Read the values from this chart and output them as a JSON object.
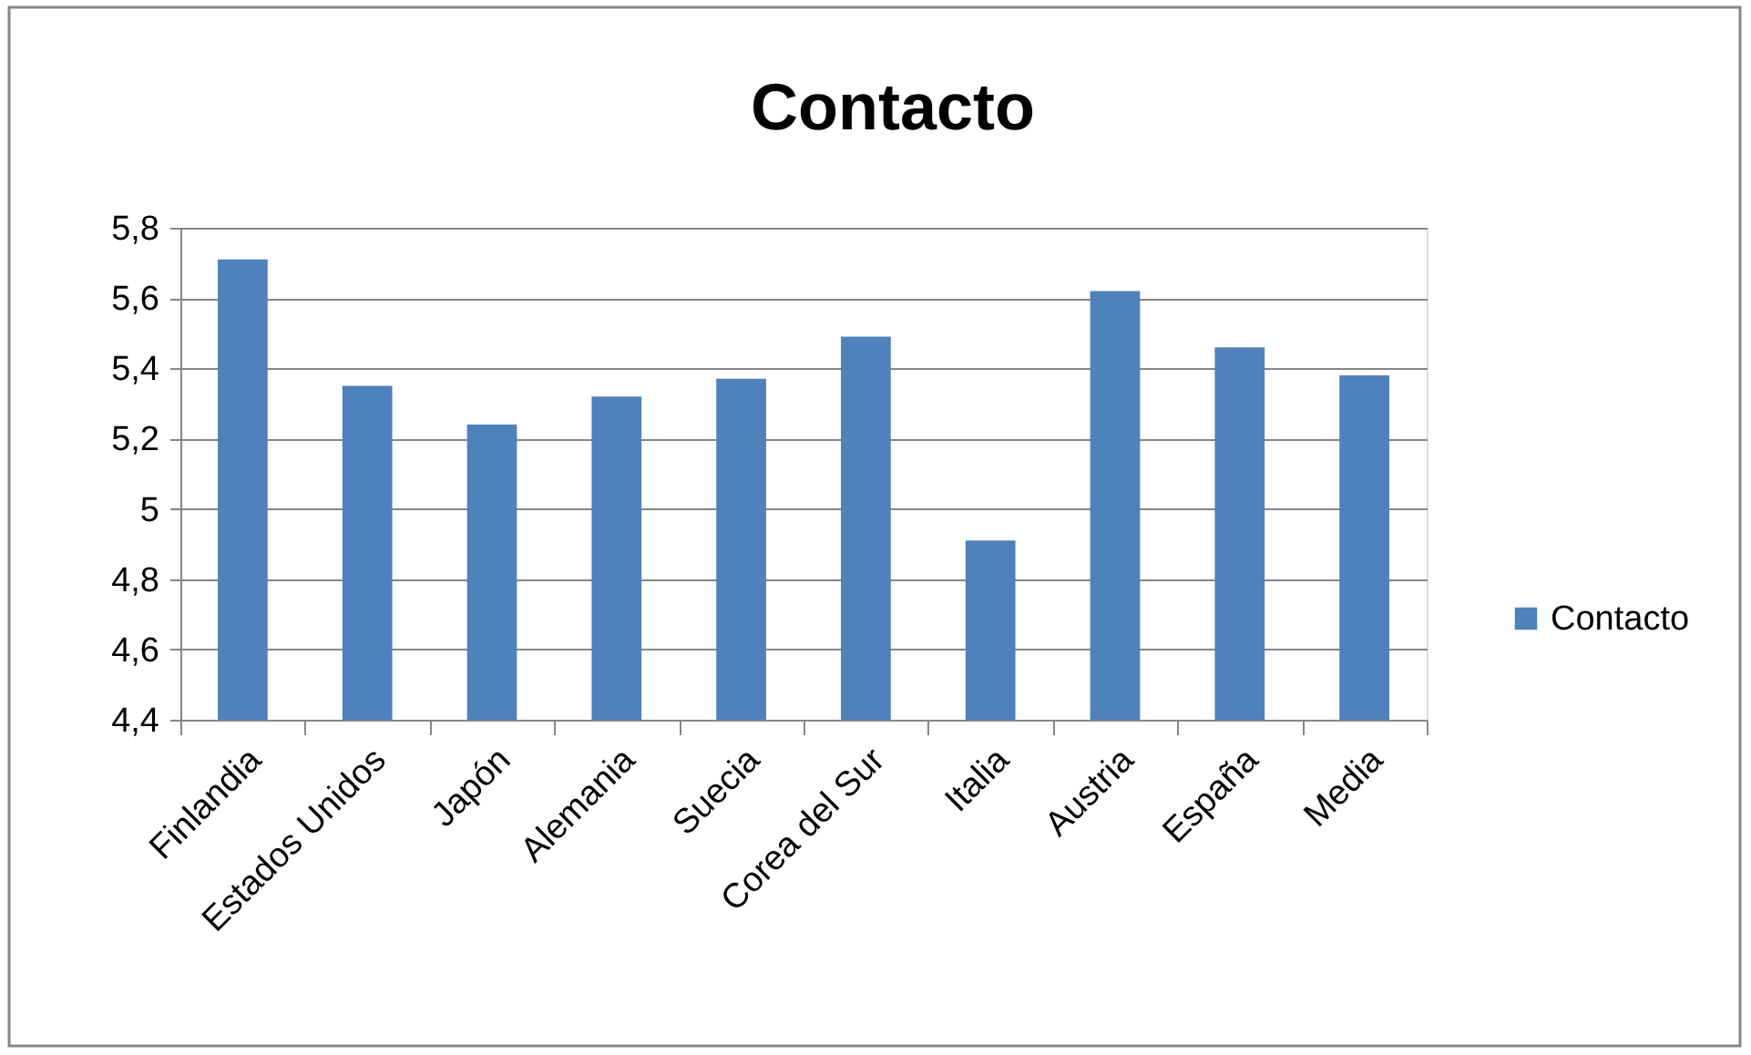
{
  "chart_data": {
    "type": "bar",
    "title": "Contacto",
    "categories": [
      "Finlandia",
      "Estados Unidos",
      "Japón",
      "Alemania",
      "Suecia",
      "Corea del Sur",
      "Italia",
      "Austria",
      "España",
      "Media"
    ],
    "series": [
      {
        "name": "Contacto",
        "color": "#4f81bd",
        "values": [
          5.71,
          5.35,
          5.24,
          5.32,
          5.37,
          5.49,
          4.91,
          5.62,
          5.46,
          5.38
        ]
      }
    ],
    "ylim": [
      4.4,
      5.8
    ],
    "yticks": [
      {
        "value": 4.4,
        "label": "4,4"
      },
      {
        "value": 4.6,
        "label": "4,6"
      },
      {
        "value": 4.8,
        "label": "4,8"
      },
      5,
      {
        "value": 5.2,
        "label": "5,2"
      },
      {
        "value": 5.4,
        "label": "5,4"
      },
      {
        "value": 5.6,
        "label": "5,6"
      },
      {
        "value": 5.8,
        "label": "5,8"
      }
    ],
    "grid": "y",
    "legend": "right"
  }
}
